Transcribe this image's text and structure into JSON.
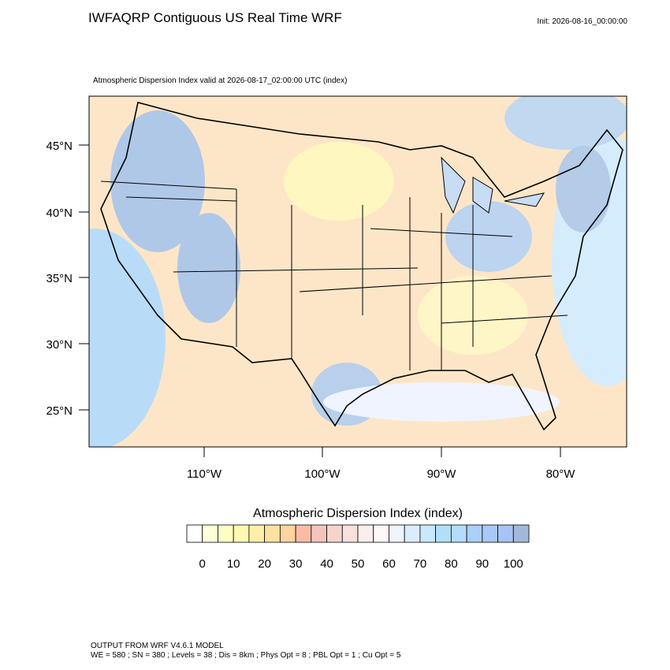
{
  "header": {
    "title": "IWFAQRP Contiguous US Real Time WRF",
    "init": "Init: 2026-08-16_00:00:00"
  },
  "map": {
    "subtitle": "Atmospheric Dispersion Index valid at 2026-08-17_02:00:00 UTC   (index)",
    "lat_labels": [
      "45°N",
      "40°N",
      "35°N",
      "30°N",
      "25°N"
    ],
    "lon_labels": [
      "110°W",
      "100°W",
      "90°W",
      "80°W"
    ]
  },
  "colorbar": {
    "title": "Atmospheric Dispersion Index  (index)",
    "ticks": [
      0,
      10,
      20,
      30,
      40,
      50,
      60,
      70,
      80,
      90,
      100
    ],
    "colors": [
      "#ffffff",
      "#ffffd8",
      "#ffffc4",
      "#fff8b0",
      "#fff0a8",
      "#ffe0a0",
      "#ffd4a0",
      "#fcbca4",
      "#f4c4bc",
      "#f4d4cc",
      "#f8e0dc",
      "#fbeeee",
      "#fff6f6",
      "#f0f4ff",
      "#dcecff",
      "#c8e8fc",
      "#b0e0f8",
      "#b4dcfc",
      "#a8d0f8",
      "#a8c8f8",
      "#a8c4f4",
      "#a4b8dc"
    ]
  },
  "footer": {
    "line1": "OUTPUT FROM WRF V4.6.1 MODEL",
    "line2": "WE = 580 ; SN = 380 ; Levels = 38 ; Dis = 8km ; Phys Opt = 8 ; PBL Opt = 1 ; Cu Opt = 5"
  }
}
